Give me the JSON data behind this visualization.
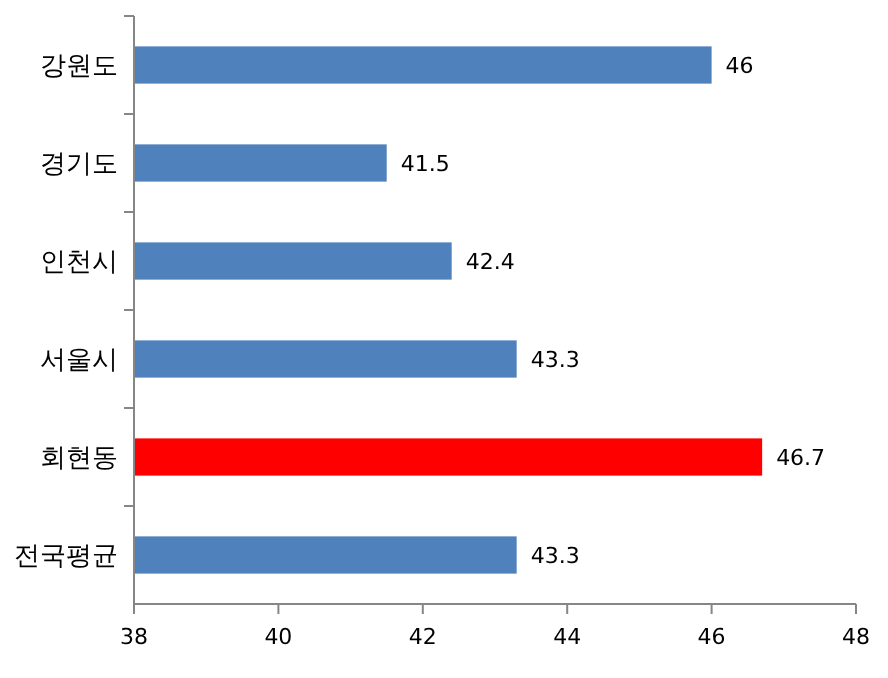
{
  "chart_data": {
    "type": "bar",
    "orientation": "horizontal",
    "categories": [
      "강원도",
      "경기도",
      "인천시",
      "서울시",
      "회현동",
      "전국평균"
    ],
    "values": [
      46,
      41.5,
      42.4,
      43.3,
      46.7,
      43.3
    ],
    "colors": [
      "#4f81bd",
      "#4f81bd",
      "#4f81bd",
      "#4f81bd",
      "#ff0000",
      "#4f81bd"
    ],
    "xlim": [
      38,
      48
    ],
    "xticks": [
      38,
      40,
      42,
      44,
      46,
      48
    ],
    "data_labels": true,
    "grid": false
  }
}
